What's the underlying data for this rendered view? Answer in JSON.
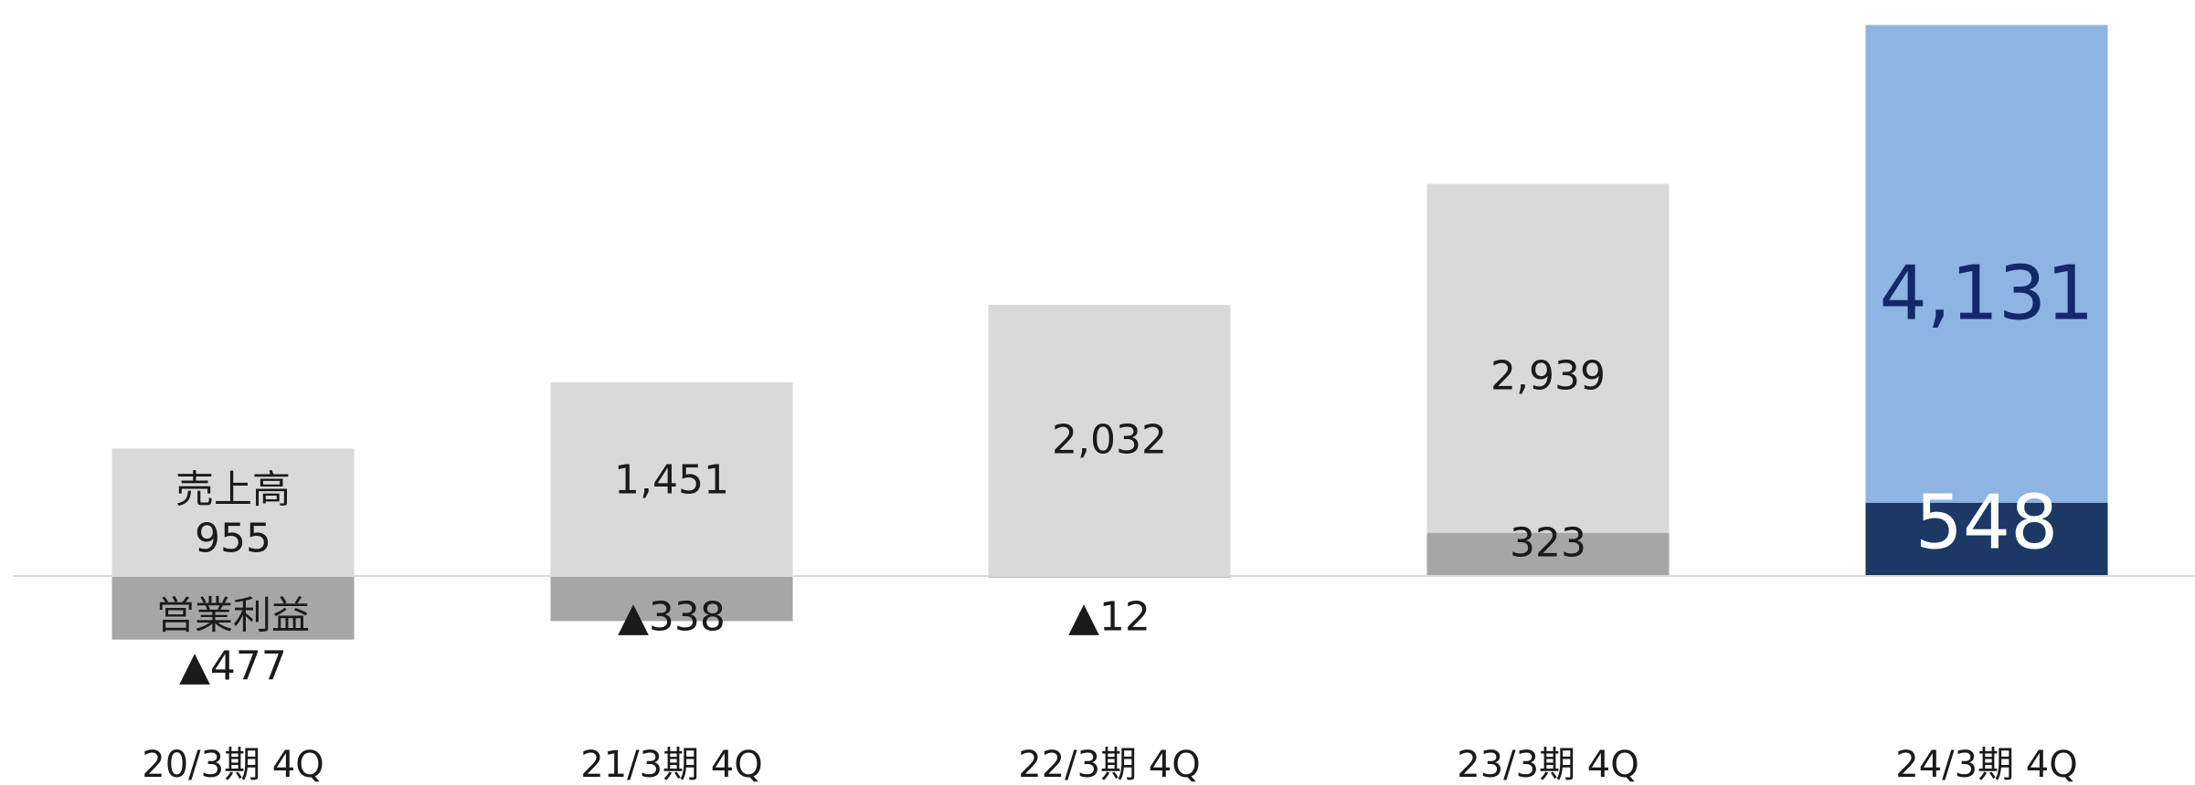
{
  "chart_data": {
    "type": "bar",
    "categories": [
      "20/3期 4Q",
      "21/3期 4Q",
      "22/3期 4Q",
      "23/3期 4Q",
      "24/3期 4Q"
    ],
    "series": [
      {
        "name": "売上高",
        "values": [
          955,
          1451,
          2032,
          2939,
          4131
        ],
        "labels": [
          "955",
          "1,451",
          "2,032",
          "2,939",
          "4,131"
        ]
      },
      {
        "name": "営業利益",
        "values": [
          -477,
          -338,
          -12,
          323,
          548
        ],
        "labels": [
          "▲477",
          "▲338",
          "▲12",
          "323",
          "548"
        ]
      }
    ],
    "series_label_first_bar": {
      "revenue": "売上高",
      "profit": "営業利益"
    },
    "ylim": [
      -530,
      4250
    ],
    "grid": false,
    "legend": "none",
    "colors": {
      "revenue": "#d9d9d9",
      "profit": "#a6a6a6",
      "revenue_highlight": "#8eb4e3",
      "profit_highlight": "#1c3864",
      "highlight_label_revenue": "#13286a",
      "highlight_label_profit": "#ffffff",
      "baseline": "#d9d9d9"
    },
    "highlight_index": 4
  }
}
